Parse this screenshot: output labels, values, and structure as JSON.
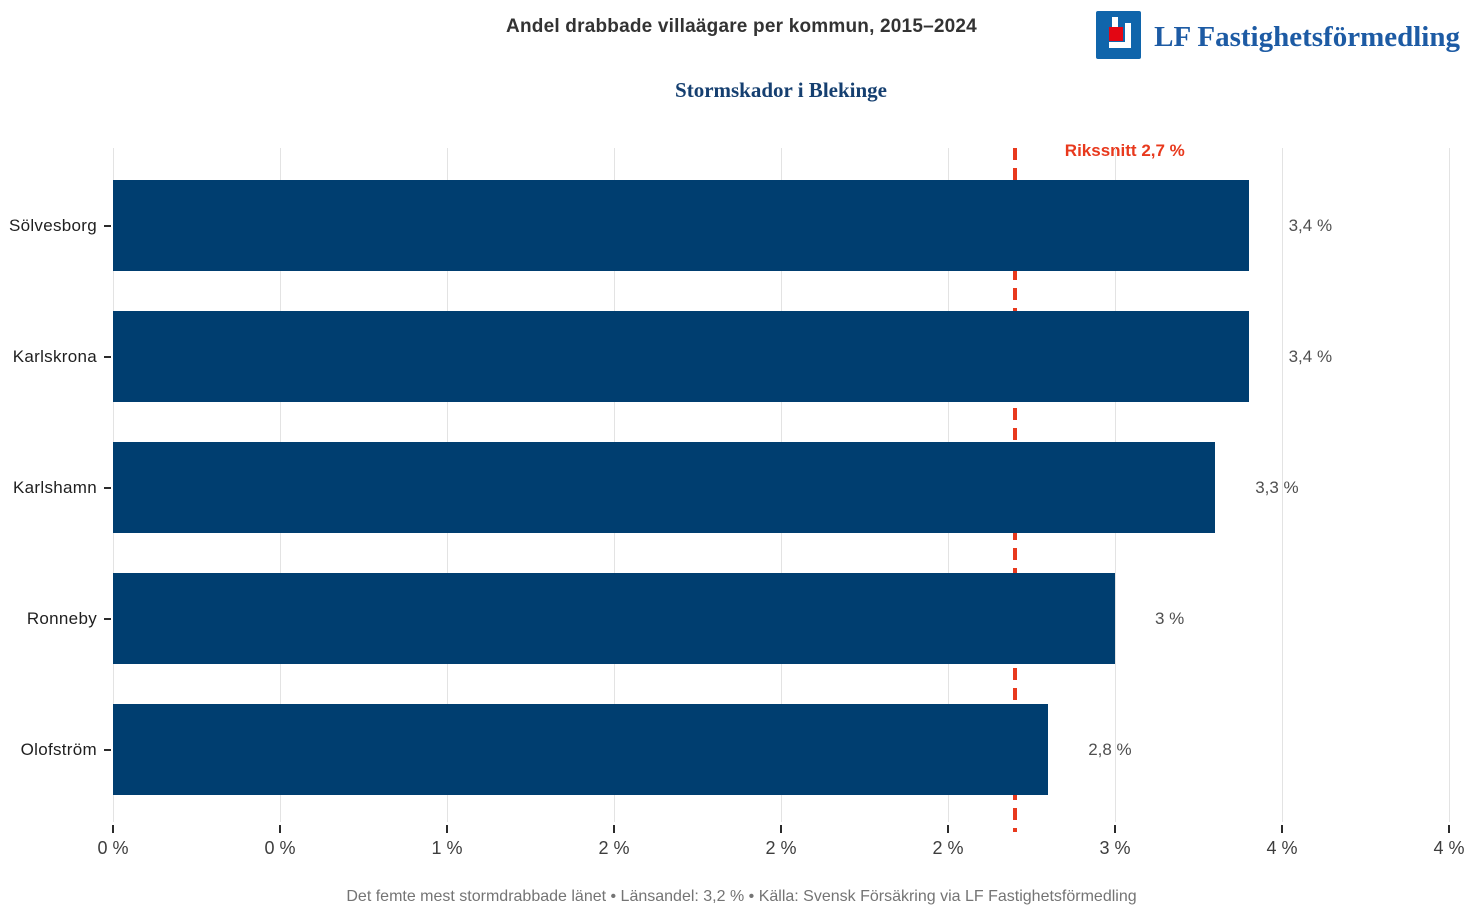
{
  "header": {
    "title": "Andel drabbade villaägare per kommun, 2015–2024",
    "logo_text": "LF Fastighetsförmedling"
  },
  "chart_data": {
    "type": "bar",
    "orientation": "horizontal",
    "title": "Andel drabbade villaägare per kommun, 2015–2024",
    "subtitle": "Stormskador i Blekinge",
    "categories": [
      "Sölvesborg",
      "Karlskrona",
      "Karlshamn",
      "Ronneby",
      "Olofström"
    ],
    "values": [
      3.4,
      3.4,
      3.3,
      3.0,
      2.8
    ],
    "value_labels": [
      "3,4 %",
      "3,4 %",
      "3,3 %",
      "3 %",
      "2,8 %"
    ],
    "xlim": [
      0,
      4
    ],
    "x_ticks": [
      0,
      0.5,
      1,
      1.5,
      2,
      2.5,
      3,
      3.5,
      4
    ],
    "x_tick_labels": [
      "0 %",
      "0 %",
      "1 %",
      "2 %",
      "2 %",
      "2 %",
      "3 %",
      "4 %",
      "4 %"
    ],
    "reference_line": {
      "value": 2.7,
      "label": "Rikssnitt 2,7 %",
      "color": "#e8391d",
      "style": "dashed"
    },
    "bar_color": "#003e70",
    "grid": "vertical-gridlines",
    "grid_color": "#e3e3e3",
    "legend": null
  },
  "footer": {
    "text": "Det femte mest stormdrabbade länet  •  Länsandel: 3,2 %  •  Källa: Svensk Försäkring via LF Fastighetsförmedling"
  }
}
